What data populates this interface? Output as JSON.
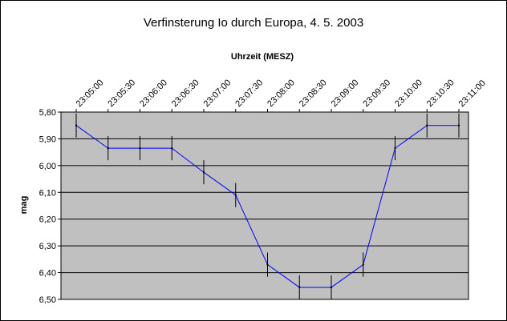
{
  "chart_data": {
    "type": "line",
    "title": "Verfinsterung Io durch Europa, 4. 5. 2003",
    "xlabel": "Uhrzeit (MESZ)",
    "ylabel": "mag",
    "x_tick_labels": [
      "23:05:00",
      "23:05:30",
      "23:06:00",
      "23:06:30",
      "23:07:00",
      "23:07:30",
      "23:08:00",
      "23:08:30",
      "23:09:00",
      "23:09:30",
      "23:10:00",
      "23:10:30",
      "23:11:00"
    ],
    "y_tick_labels": [
      "5,80",
      "5,90",
      "6,00",
      "6,10",
      "6,20",
      "6,30",
      "6,40",
      "6,50"
    ],
    "ylim": [
      5.8,
      6.5
    ],
    "y_inverted": true,
    "grid": true,
    "legend": "none",
    "error_bar": 0.045,
    "colors": {
      "plot_area": "#c0c0c0",
      "line": "#0000ff",
      "grid": "#000000"
    },
    "points": [
      {
        "x": "23:05:00",
        "y": 5.85
      },
      {
        "x": "23:05:30",
        "y": 5.935
      },
      {
        "x": "23:06:00",
        "y": 5.935
      },
      {
        "x": "23:06:30",
        "y": 5.935
      },
      {
        "x": "23:07:00",
        "y": 6.025
      },
      {
        "x": "23:07:30",
        "y": 6.11
      },
      {
        "x": "23:08:00",
        "y": 6.37
      },
      {
        "x": "23:08:30",
        "y": 6.455
      },
      {
        "x": "23:09:00",
        "y": 6.455
      },
      {
        "x": "23:09:30",
        "y": 6.37
      },
      {
        "x": "23:10:00",
        "y": 5.935
      },
      {
        "x": "23:10:30",
        "y": 5.85
      },
      {
        "x": "23:11:00",
        "y": 5.85
      }
    ]
  }
}
